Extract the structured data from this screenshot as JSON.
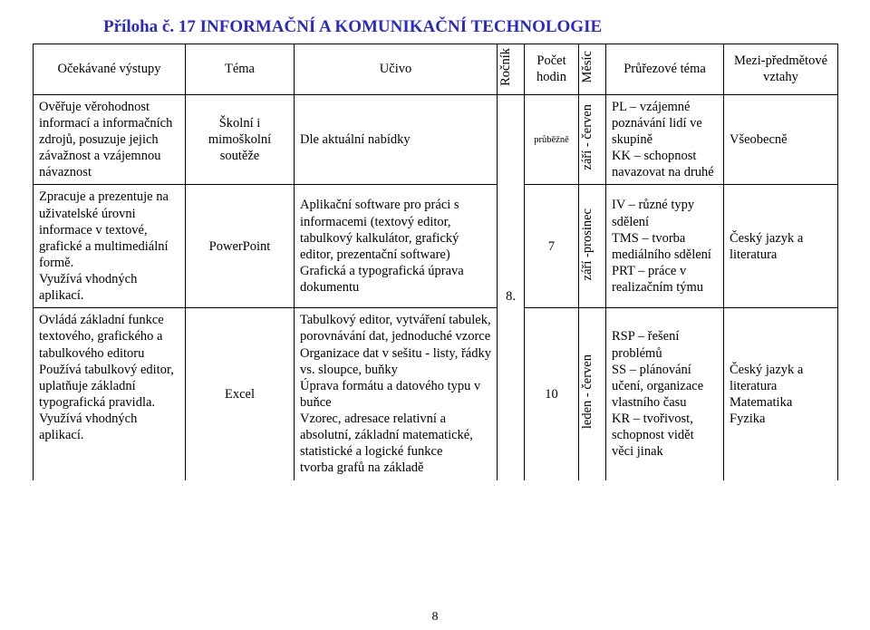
{
  "title": "Příloha č. 17  INFORMAČNÍ A KOMUNIKAČNÍ TECHNOLOGIE",
  "header": {
    "col1": "Očekávané výstupy",
    "col2": "Téma",
    "col3": "Učivo",
    "col4": "Ročník",
    "col5": "Počet hodin",
    "col6": "Měsíc",
    "col7": "Průřezové téma",
    "col8": "Mezi-předmětové vztahy"
  },
  "rows": [
    {
      "outputs": "Ověřuje věrohodnost informací a informačních zdrojů, posuzuje jejich závažnost a vzájemnou návaznost",
      "theme": "Školní i mimoškolní soutěže",
      "content": "Dle aktuální nabídky",
      "grade": "",
      "hours": "průběžně",
      "month": "září - červen",
      "cross": "PL – vzájemné poznávání lidí ve skupině\nKK – schopnost navazovat na druhé",
      "links": "Všeobecně"
    },
    {
      "outputs": "Zpracuje a prezentuje na uživatelské úrovni informace v textové, grafické a multimediální formě.\nVyužívá vhodných aplikací.",
      "theme": "PowerPoint",
      "content": "Aplikační software pro práci s informacemi (textový editor, tabulkový kalkulátor, grafický editor, prezentační software)\nGrafická a typografická úprava dokumentu",
      "grade": "8.",
      "hours": "7",
      "month": "září -prosinec",
      "cross": "IV – různé typy sdělení\nTMS – tvorba mediálního sdělení\nPRT – práce v realizačním týmu",
      "links": "Český jazyk a literatura"
    },
    {
      "outputs": "Ovládá základní funkce textového, grafického a tabulkového editoru\nPoužívá tabulkový editor, uplatňuje základní typografická pravidla.\nVyužívá vhodných aplikací.",
      "theme": "Excel",
      "content": "Tabulkový editor, vytváření tabulek, porovnávání dat, jednoduché vzorce\nOrganizace dat v sešitu - listy, řádky vs. sloupce, buňky\nÚprava formátu a datového typu v buňce\nVzorec, adresace relativní a absolutní, základní matematické, statistické a logické funkce\ntvorba grafů na základě",
      "grade": "",
      "hours": "10",
      "month": "leden - červen",
      "cross": "RSP – řešení problémů\nSS – plánování učení, organizace vlastního času\nKR – tvořivost, schopnost vidět věci jinak",
      "links": "Český jazyk a literatura\nMatematika\nFyzika"
    }
  ],
  "pagenum": "8",
  "hours_fontsize": "10.5px"
}
